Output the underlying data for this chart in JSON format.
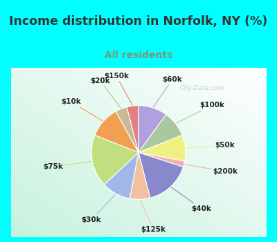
{
  "title": "Income distribution in Norfolk, NY (%)",
  "subtitle": "All residents",
  "title_color": "#333333",
  "subtitle_color": "#779977",
  "background_color": "#00ffff",
  "watermark": "City-Data.com",
  "slices": [
    {
      "label": "$60k",
      "value": 10,
      "color": "#b0a0e0"
    },
    {
      "label": "$100k",
      "value": 9,
      "color": "#a8c8a0"
    },
    {
      "label": "$50k",
      "value": 9,
      "color": "#f0f080"
    },
    {
      "label": "$200k",
      "value": 2,
      "color": "#f0b0b0"
    },
    {
      "label": "$40k",
      "value": 16,
      "color": "#8888cc"
    },
    {
      "label": "$125k",
      "value": 7,
      "color": "#f0c0a0"
    },
    {
      "label": "$30k",
      "value": 10,
      "color": "#a0b8e8"
    },
    {
      "label": "$75k",
      "value": 18,
      "color": "#c0e080"
    },
    {
      "label": "$10k",
      "value": 11,
      "color": "#f0a050"
    },
    {
      "label": "$20k",
      "value": 4,
      "color": "#c8b898"
    },
    {
      "label": "$150k",
      "value": 4,
      "color": "#e08080"
    }
  ],
  "label_fontsize": 7.5,
  "title_fontsize": 12.5,
  "subtitle_fontsize": 10,
  "border_width": 6,
  "border_color": "#00ffff"
}
